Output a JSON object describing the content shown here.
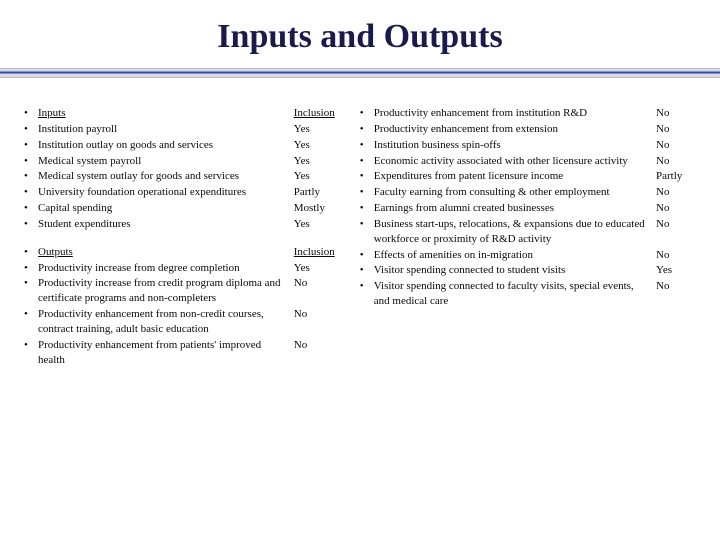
{
  "title": "Inputs and Outputs",
  "left": {
    "section1": {
      "header": {
        "label": "Inputs",
        "value": "Inclusion"
      },
      "rows": [
        {
          "label": "Institution payroll",
          "value": "Yes"
        },
        {
          "label": "Institution outlay on goods and services",
          "value": "Yes"
        },
        {
          "label": "Medical system payroll",
          "value": "Yes"
        },
        {
          "label": "Medical system outlay for goods and services",
          "value": "Yes"
        },
        {
          "label": "University foundation operational expenditures",
          "value": "Partly"
        },
        {
          "label": "Capital spending",
          "value": "Mostly"
        },
        {
          "label": "Student expenditures",
          "value": "Yes"
        }
      ]
    },
    "section2": {
      "header": {
        "label": "Outputs",
        "value": "Inclusion"
      },
      "rows": [
        {
          "label": "Productivity increase from degree completion",
          "value": "Yes"
        },
        {
          "label": "Productivity increase from credit program diploma and certificate programs and non-completers",
          "value": "No"
        },
        {
          "label": "Productivity enhancement from non-credit courses, contract training, adult basic education",
          "value": "No"
        },
        {
          "label": "Productivity enhancement from patients' improved health",
          "value": "No"
        }
      ]
    }
  },
  "right": {
    "rows": [
      {
        "label": "Productivity enhancement from institution R&D",
        "value": "No"
      },
      {
        "label": "Productivity enhancement from extension",
        "value": "No"
      },
      {
        "label": "Institution business spin-offs",
        "value": "No"
      },
      {
        "label": "Economic activity associated with other licensure activity",
        "value": "No"
      },
      {
        "label": "Expenditures from patent licensure income",
        "value": "Partly"
      },
      {
        "label": "Faculty earning from consulting & other employment",
        "value": "No"
      },
      {
        "label": "Earnings from alumni created businesses",
        "value": "No"
      },
      {
        "label": "Business start-ups, relocations, & expansions due to educated workforce or proximity of R&D activity",
        "value": "No"
      },
      {
        "label": "Effects of amenities on in-migration",
        "value": "No"
      },
      {
        "label": "Visitor spending connected to student visits",
        "value": "Yes"
      },
      {
        "label": "Visitor spending connected to faculty visits, special events, and medical care",
        "value": "No"
      }
    ]
  }
}
